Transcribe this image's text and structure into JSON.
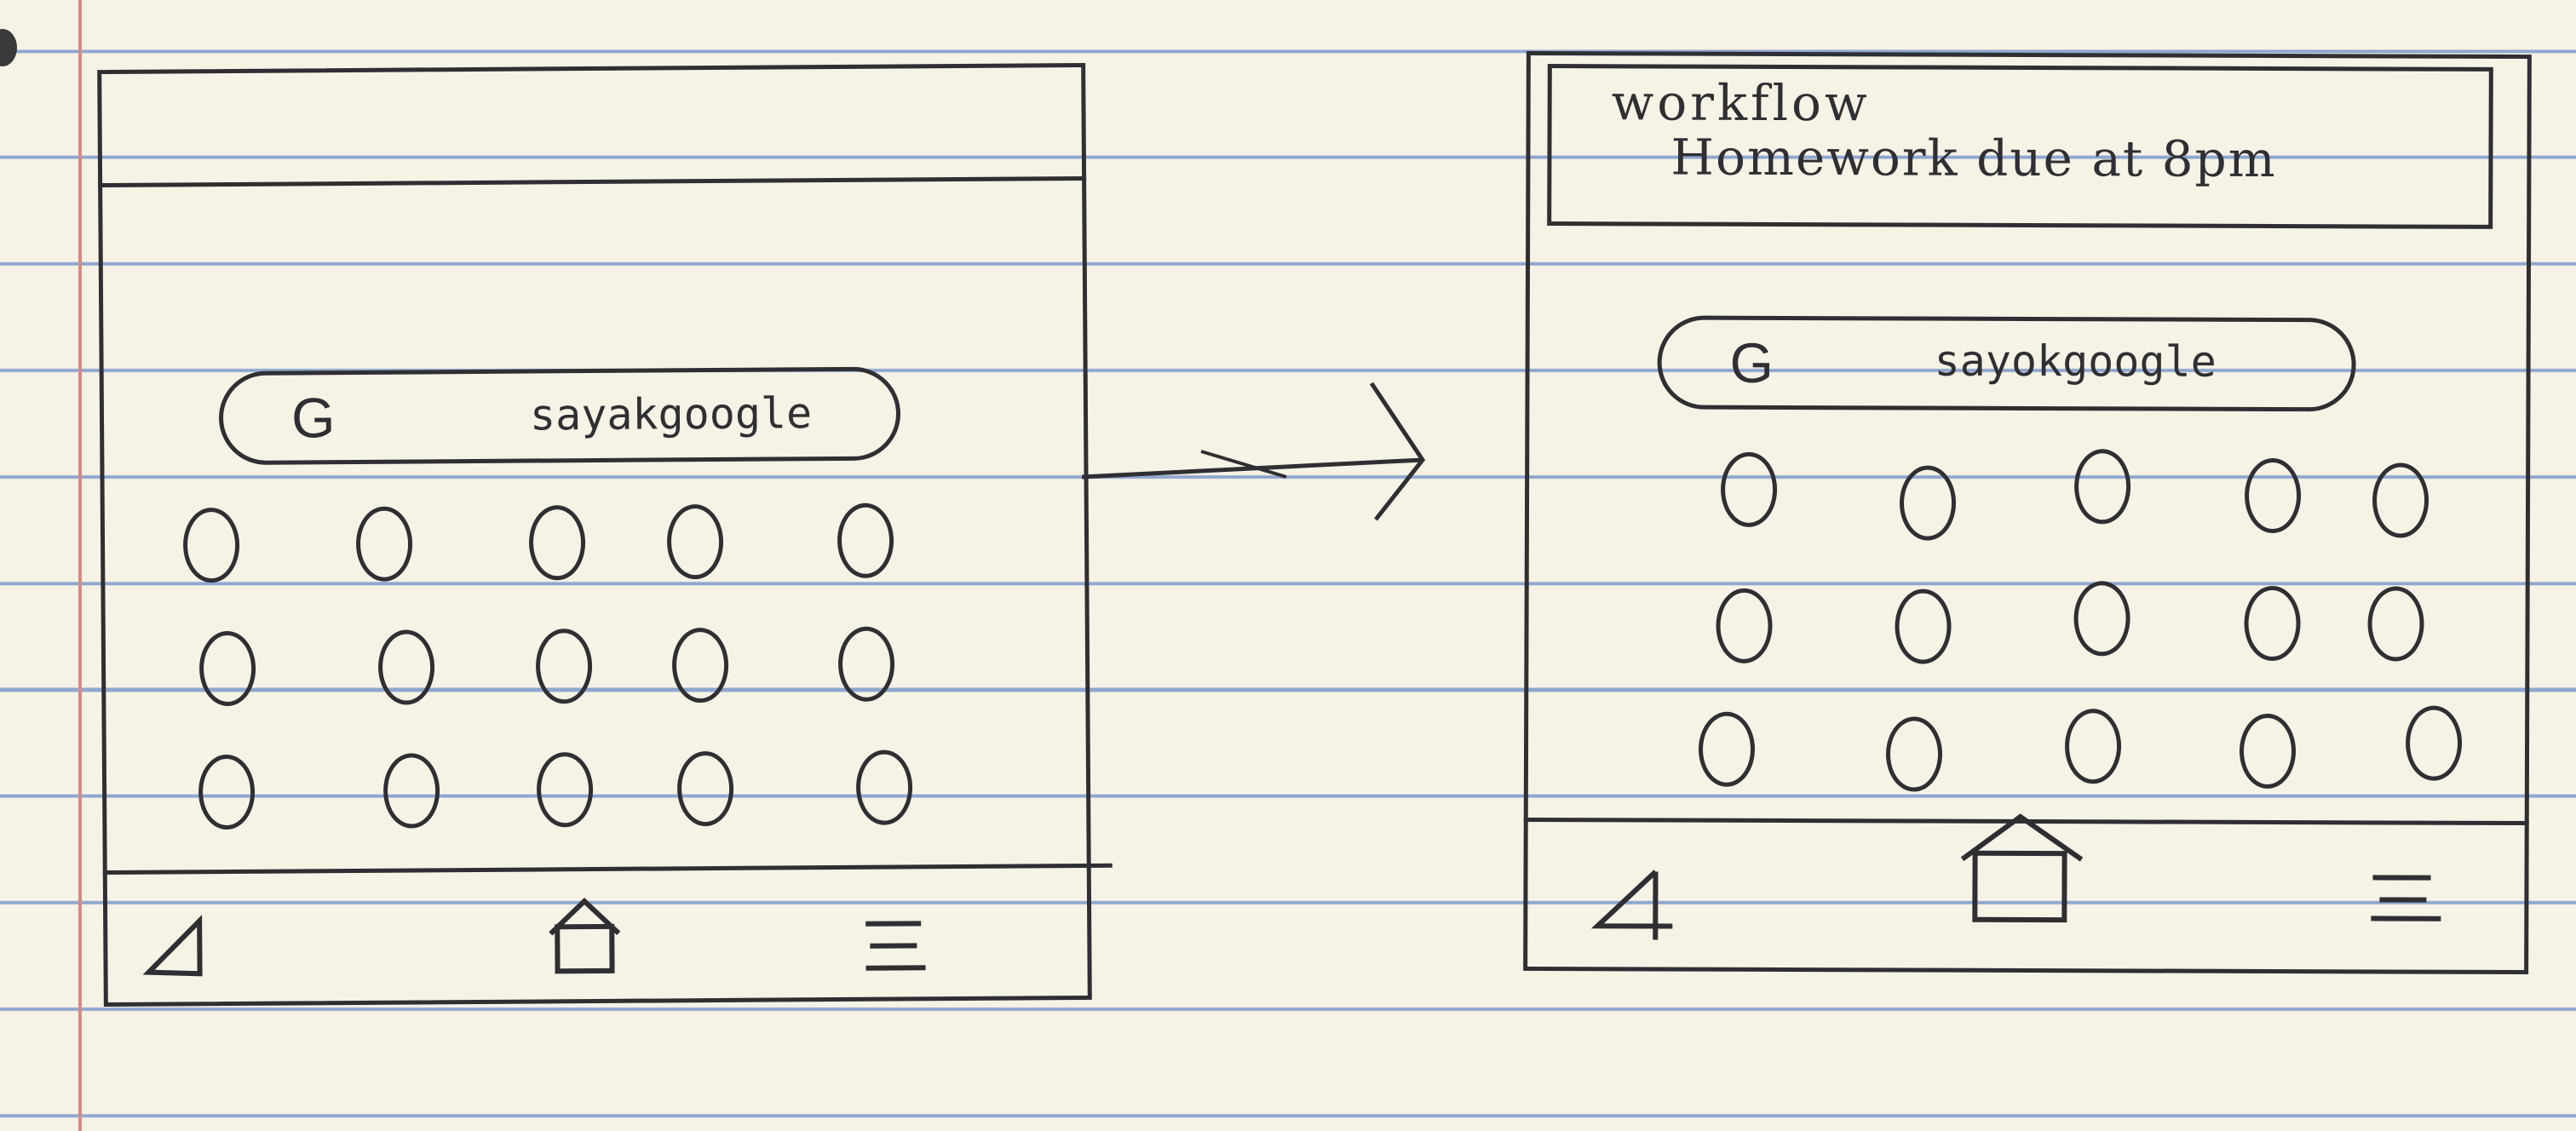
{
  "before_screen": {
    "search": {
      "icon": "G",
      "text": "sayakgoogle"
    },
    "app_grid": {
      "rows": 3,
      "cols": 5
    },
    "nav": {
      "icons": [
        "back-icon",
        "home-icon",
        "menu-icon"
      ]
    }
  },
  "after_screen": {
    "notification": {
      "title": "workflow",
      "body": "Homework due at 8pm"
    },
    "search": {
      "icon": "G",
      "text": "sayokgoogle"
    },
    "app_grid": {
      "rows": 3,
      "cols": 5
    },
    "nav": {
      "icons": [
        "back-icon",
        "home-icon",
        "menu-icon"
      ]
    }
  },
  "colors": {
    "ink": "#2f2f33",
    "paper": "#f6f2e6",
    "ruling": "#8fa7cf",
    "margin": "#d58b86"
  }
}
